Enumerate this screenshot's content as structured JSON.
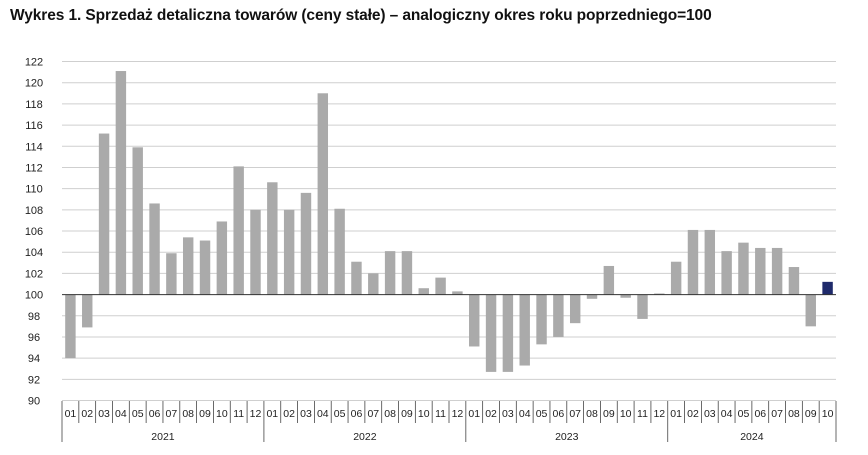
{
  "title": "Wykres 1. Sprzedaż detaliczna towarów (ceny stałe) – analogiczny okres roku poprzedniego=100",
  "colors": {
    "bar": "#aaaaaa",
    "highlight": "#1f2a6b",
    "grid": "#cfcfcf",
    "axis": "#333333"
  },
  "chart_data": {
    "type": "bar",
    "title": "Wykres 1. Sprzedaż detaliczna towarów (ceny stałe) – analogiczny okres roku poprzedniego=100",
    "baseline": 100,
    "ylim": [
      90,
      122
    ],
    "yticks": [
      90,
      92,
      94,
      96,
      98,
      100,
      102,
      104,
      106,
      108,
      110,
      112,
      114,
      116,
      118,
      120,
      122
    ],
    "grid": true,
    "years": [
      "2021",
      "2022",
      "2023",
      "2024"
    ],
    "categories": [
      "01",
      "02",
      "03",
      "04",
      "05",
      "06",
      "07",
      "08",
      "09",
      "10",
      "11",
      "12",
      "01",
      "02",
      "03",
      "04",
      "05",
      "06",
      "07",
      "08",
      "09",
      "10",
      "11",
      "12",
      "01",
      "02",
      "03",
      "04",
      "05",
      "06",
      "07",
      "08",
      "09",
      "10",
      "11",
      "12",
      "01",
      "02",
      "03",
      "04",
      "05",
      "06",
      "07",
      "08",
      "09",
      "10"
    ],
    "values": [
      94.0,
      96.9,
      115.2,
      121.1,
      113.9,
      108.6,
      103.9,
      105.4,
      105.1,
      106.9,
      112.1,
      108.0,
      110.6,
      108.0,
      109.6,
      119.0,
      108.1,
      103.1,
      102.0,
      104.1,
      104.1,
      100.6,
      101.6,
      100.3,
      95.1,
      92.7,
      92.7,
      93.3,
      95.3,
      96.0,
      97.3,
      99.6,
      102.7,
      99.7,
      97.7,
      100.1,
      103.1,
      106.1,
      106.1,
      104.1,
      104.9,
      104.4,
      104.4,
      102.6,
      97.0,
      101.2
    ],
    "highlight_index": 45
  }
}
